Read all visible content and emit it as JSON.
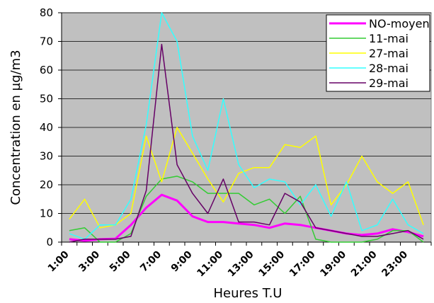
{
  "chart_data": {
    "type": "line",
    "title": "",
    "xlabel": "Heures T.U",
    "ylabel": "Concentration en µg/m3",
    "ylim": [
      0,
      80
    ],
    "yticks": [
      0,
      10,
      20,
      30,
      40,
      50,
      60,
      70,
      80
    ],
    "grid": true,
    "legend_position": "top-right",
    "x": [
      "1:00",
      "2:00",
      "3:00",
      "4:00",
      "5:00",
      "6:00",
      "7:00",
      "8:00",
      "9:00",
      "10:00",
      "11:00",
      "12:00",
      "13:00",
      "14:00",
      "15:00",
      "16:00",
      "17:00",
      "18:00",
      "19:00",
      "20:00",
      "21:00",
      "22:00",
      "23:00",
      "24:00"
    ],
    "xtick_labels": [
      "1:00",
      "3:00",
      "5:00",
      "7:00",
      "9:00",
      "11:00",
      "13:00",
      "15:00",
      "17:00",
      "19:00",
      "21:00",
      "23:00"
    ],
    "series": [
      {
        "name": "NO-moyen",
        "color": "#ff00ff",
        "width": 3,
        "values": [
          1,
          0.5,
          1,
          1.2,
          6,
          12,
          16.5,
          14.5,
          9,
          7,
          7,
          6.5,
          6,
          5,
          6.5,
          6,
          5,
          4,
          3,
          2.5,
          3,
          4.5,
          3.5,
          2
        ]
      },
      {
        "name": "11-mai",
        "color": "#33cc33",
        "width": 1.5,
        "values": [
          4,
          5,
          0,
          0,
          3,
          16,
          22,
          23,
          21,
          17,
          17,
          17,
          13,
          15,
          10,
          16,
          1,
          0,
          0,
          0,
          1,
          4,
          4,
          0
        ]
      },
      {
        "name": "27-mai",
        "color": "#ffff00",
        "width": 1.5,
        "values": [
          8,
          15,
          5,
          6,
          10,
          37,
          21,
          40,
          31,
          22,
          14,
          24,
          26,
          26,
          34,
          33,
          37,
          13,
          20,
          30,
          21,
          17,
          21,
          6
        ]
      },
      {
        "name": "28-mai",
        "color": "#33ffff",
        "width": 1.5,
        "values": [
          3,
          1,
          6,
          6,
          15,
          41,
          80,
          70,
          37,
          25,
          50,
          27,
          19,
          22,
          21,
          13,
          20,
          9,
          21,
          4,
          6,
          15,
          6,
          3
        ]
      },
      {
        "name": "29-mai",
        "color": "#660066",
        "width": 1.5,
        "values": [
          0,
          1,
          1,
          1,
          2,
          18,
          69,
          27,
          17,
          10,
          22,
          7,
          7,
          6,
          17,
          14,
          5,
          4,
          3,
          2,
          2,
          3,
          4,
          1
        ]
      }
    ]
  }
}
